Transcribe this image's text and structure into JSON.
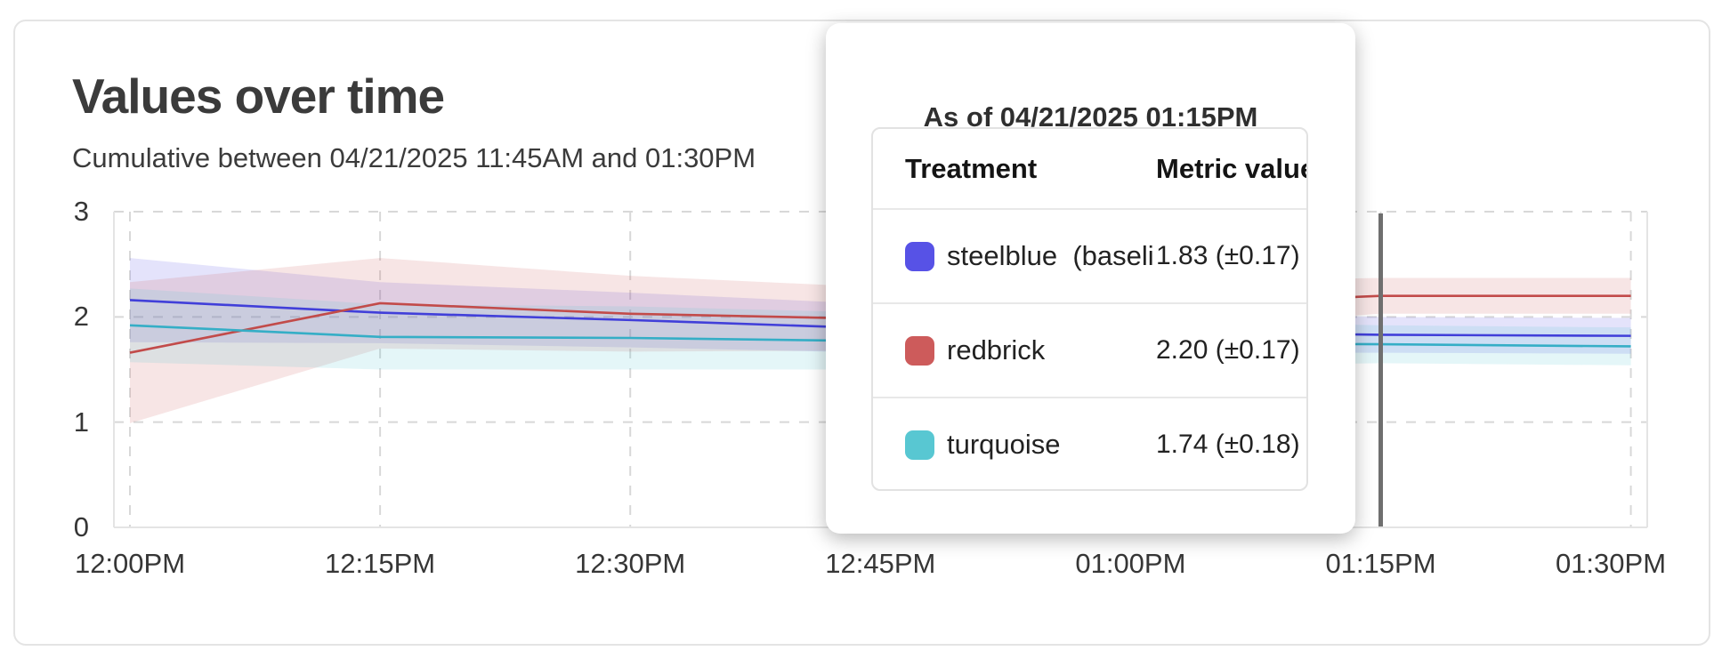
{
  "card": {
    "title": "Values over time",
    "subtitle": "Cumulative between 04/21/2025 11:45AM and 01:30PM"
  },
  "chart_data": {
    "type": "line",
    "title": "Values over time",
    "subtitle": "Cumulative between 04/21/2025 11:45AM and 01:30PM",
    "x_labels": [
      "12:00PM",
      "12:15PM",
      "12:30PM",
      "12:45PM",
      "01:00PM",
      "01:15PM",
      "01:30PM"
    ],
    "y_ticks": [
      "0",
      "1",
      "2",
      "3"
    ],
    "ylim": [
      0,
      3
    ],
    "grid": "dashed",
    "legend_position": "none",
    "hover": {
      "x_label": "01:15PM",
      "index": 5
    },
    "series": [
      {
        "name": "steelblue",
        "swatch_color": "#5752e6",
        "line_color": "#413fd9",
        "values": [
          2.16,
          2.04,
          1.97,
          1.89,
          1.86,
          1.83,
          1.82
        ],
        "ci_half_width": [
          0.4,
          0.29,
          0.26,
          0.23,
          0.2,
          0.17,
          0.17
        ]
      },
      {
        "name": "redbrick",
        "swatch_color": "#cd5b5b",
        "line_color": "#c24b4a",
        "values": [
          1.66,
          2.13,
          2.03,
          1.98,
          2.1,
          2.2,
          2.2
        ],
        "ci_half_width": [
          0.67,
          0.43,
          0.36,
          0.3,
          0.23,
          0.17,
          0.17
        ]
      },
      {
        "name": "turquoise",
        "swatch_color": "#58c7d2",
        "line_color": "#35aec6",
        "values": [
          1.92,
          1.81,
          1.8,
          1.77,
          1.75,
          1.74,
          1.72
        ],
        "ci_half_width": [
          0.35,
          0.31,
          0.3,
          0.27,
          0.22,
          0.18,
          0.18
        ]
      }
    ]
  },
  "tooltip": {
    "title": "As of 04/21/2025 01:15PM",
    "columns": [
      "Treatment",
      "Metric value"
    ],
    "rows": [
      {
        "swatch": "#5752e6",
        "label": "steelblue  (baseli",
        "value": "1.83 (±0.17)"
      },
      {
        "swatch": "#cd5b5b",
        "label": "redbrick",
        "value": "2.20 (±0.17)"
      },
      {
        "swatch": "#58c7d2",
        "label": "turquoise",
        "value": "1.74 (±0.18)"
      }
    ]
  },
  "colors": {
    "grid": "#d8d8d8",
    "plot_border": "#e4e4e4",
    "hover_line": "#6f6f6f",
    "text": "#3b3b3b"
  }
}
